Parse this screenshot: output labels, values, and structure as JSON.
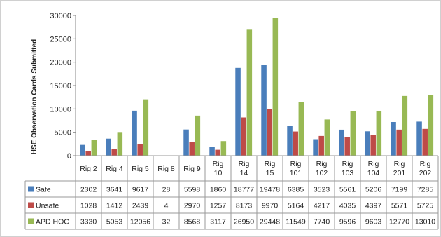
{
  "chart_data": {
    "type": "bar",
    "title": "",
    "xlabel": "",
    "ylabel": "HSE Observation Cards Submitted",
    "ylim": [
      0,
      30000
    ],
    "yticks": [
      0,
      5000,
      10000,
      15000,
      20000,
      25000,
      30000
    ],
    "grid": false,
    "legend": "table-left",
    "categories": [
      "Rig 2",
      "Rig 4",
      "Rig 5",
      "Rig 8",
      "Rig 9",
      "Rig 10",
      "Rig 14",
      "Rig 15",
      "Rig 101",
      "Rig 102",
      "Rig 103",
      "Rig 104",
      "Rig 201",
      "Rig 202"
    ],
    "series": [
      {
        "name": "Safe",
        "color": "#4a7ebb",
        "values": [
          2302,
          3641,
          9617,
          28,
          5598,
          1860,
          18777,
          19478,
          6385,
          3523,
          5561,
          5206,
          7199,
          7285
        ]
      },
      {
        "name": "Unsafe",
        "color": "#be4b48",
        "values": [
          1028,
          1412,
          2439,
          4,
          2970,
          1257,
          8173,
          9970,
          5164,
          4217,
          4035,
          4397,
          5571,
          5725
        ]
      },
      {
        "name": "APD HOC",
        "color": "#98b954",
        "values": [
          3330,
          5053,
          12056,
          32,
          8568,
          3117,
          26950,
          29448,
          11549,
          7740,
          9596,
          9603,
          12770,
          13010
        ]
      }
    ]
  }
}
